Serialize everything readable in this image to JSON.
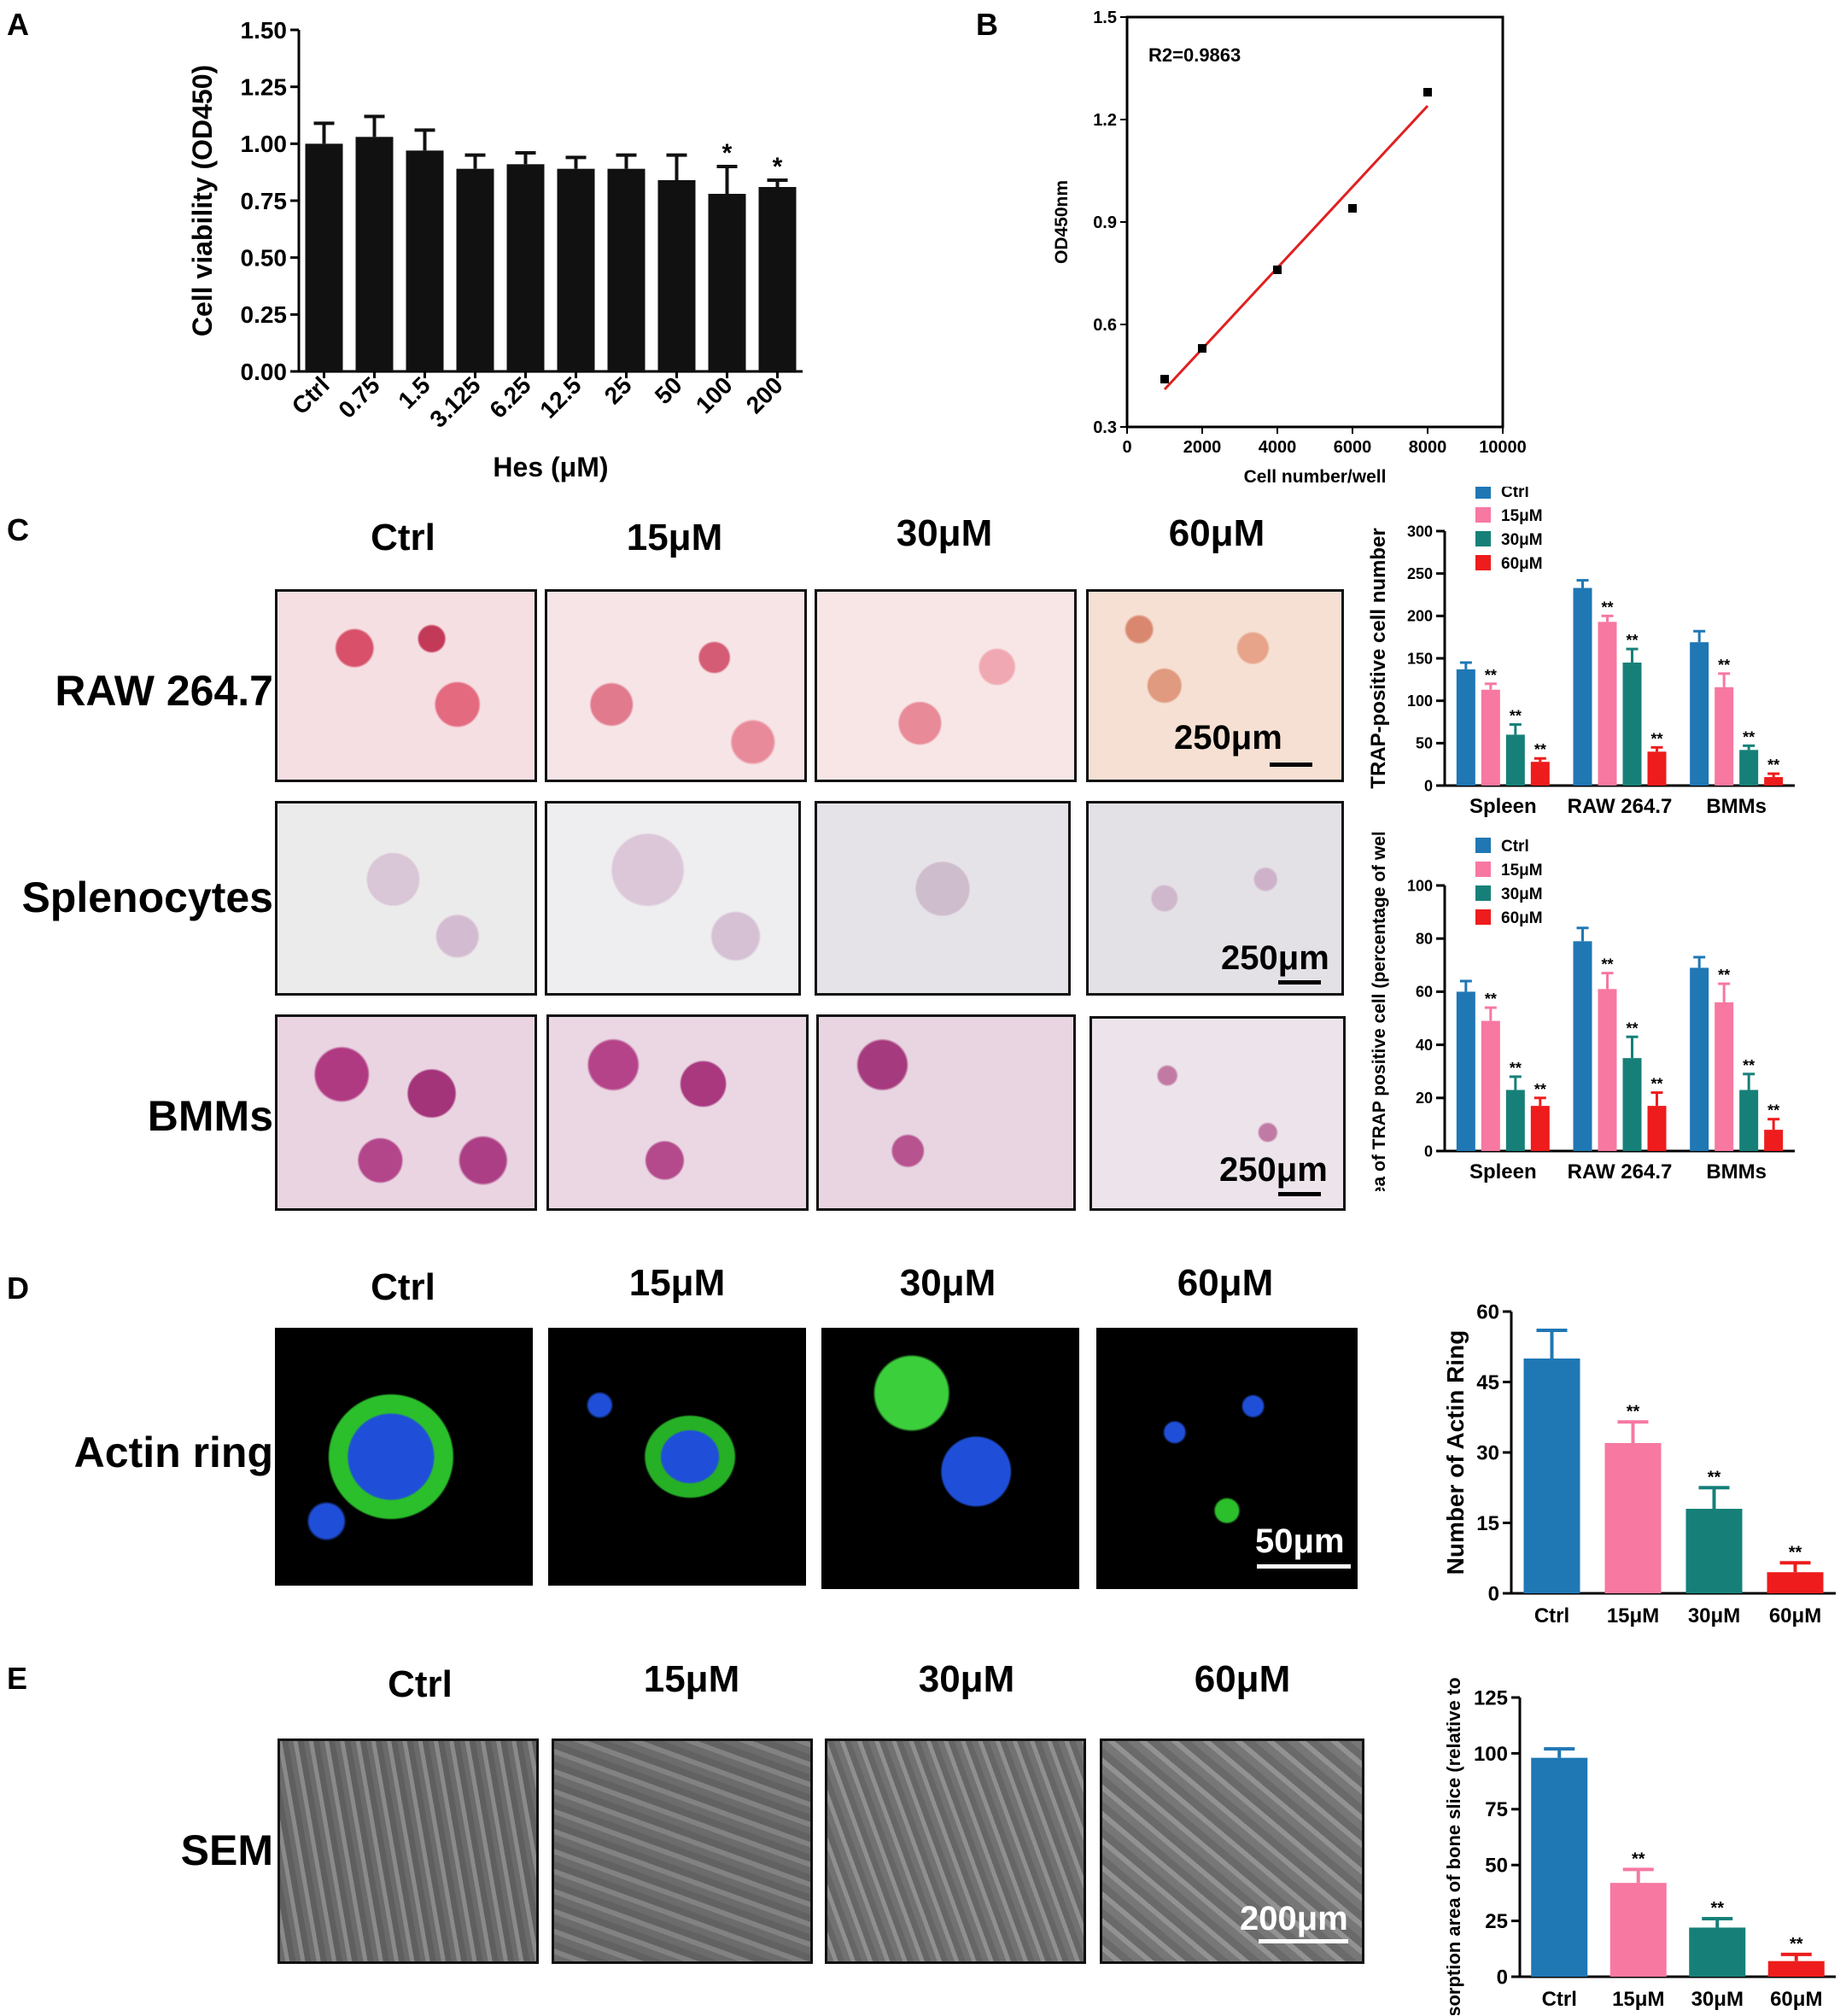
{
  "panel_labels": {
    "a": "A",
    "b": "B",
    "c": "C",
    "d": "D",
    "e": "E"
  },
  "conditions": [
    "Ctrl",
    "15μM",
    "30μM",
    "60μM"
  ],
  "row_labels": {
    "raw": "RAW 264.7",
    "spleno": "Splenocytes",
    "bmm": "BMMs",
    "actin": "Actin ring",
    "sem": "SEM"
  },
  "scale_bars": {
    "c": "250μm",
    "d": "50μm",
    "e": "200μm"
  },
  "colors": {
    "blue": "#1f77b4",
    "pink": "#f778a1",
    "teal": "#168078",
    "red": "#ee1c1c",
    "dark": "#111111",
    "fit": "#e02020"
  },
  "chart_data": [
    {
      "id": "A",
      "type": "bar",
      "title": "",
      "xlabel": "Hes (μM)",
      "ylabel": "Cell viability (OD450)",
      "ylim": [
        0,
        1.5
      ],
      "yticks": [
        "0.00",
        "0.25",
        "0.50",
        "0.75",
        "1.00",
        "1.25",
        "1.50"
      ],
      "categories": [
        "Ctrl",
        "0.75",
        "1.5",
        "3.125",
        "6.25",
        "12.5",
        "25",
        "50",
        "100",
        "200"
      ],
      "values": [
        1.0,
        1.03,
        0.97,
        0.89,
        0.91,
        0.89,
        0.89,
        0.84,
        0.78,
        0.81
      ],
      "errors": [
        0.09,
        0.09,
        0.09,
        0.06,
        0.05,
        0.05,
        0.06,
        0.11,
        0.12,
        0.03
      ],
      "sig": [
        "",
        "",
        "",
        "",
        "",
        "",
        "",
        "",
        "*",
        "*"
      ]
    },
    {
      "id": "B",
      "type": "scatter",
      "title": "",
      "annotation": "R2=0.9863",
      "xlabel": "Cell number/well",
      "ylabel": "OD450nm",
      "xlim": [
        0,
        10000
      ],
      "ylim": [
        0.3,
        1.5
      ],
      "xticks": [
        "0",
        "2000",
        "4000",
        "6000",
        "8000",
        "10000"
      ],
      "yticks": [
        "0.3",
        "0.6",
        "0.9",
        "1.2",
        "1.5"
      ],
      "points": [
        [
          1000,
          0.44
        ],
        [
          2000,
          0.53
        ],
        [
          4000,
          0.76
        ],
        [
          6000,
          0.94
        ],
        [
          8000,
          1.28
        ]
      ],
      "fit": [
        [
          1000,
          0.41
        ],
        [
          8000,
          1.24
        ]
      ]
    },
    {
      "id": "C-top",
      "type": "bar",
      "ylabel": "TRAP-positive cell number",
      "ylim": [
        0,
        300
      ],
      "yticks": [
        "0",
        "50",
        "100",
        "150",
        "200",
        "250",
        "300"
      ],
      "categories": [
        "Spleen",
        "RAW 264.7",
        "BMMs"
      ],
      "series": [
        {
          "name": "Ctrl",
          "values": [
            137,
            233,
            169
          ],
          "errors": [
            8,
            9,
            13
          ],
          "sig": [
            "",
            "",
            ""
          ]
        },
        {
          "name": "15μM",
          "values": [
            113,
            193,
            116
          ],
          "errors": [
            7,
            7,
            16
          ],
          "sig": [
            "**",
            "**",
            "**"
          ]
        },
        {
          "name": "30μM",
          "values": [
            60,
            145,
            42
          ],
          "errors": [
            12,
            16,
            5
          ],
          "sig": [
            "**",
            "**",
            "**"
          ]
        },
        {
          "name": "60μM",
          "values": [
            28,
            40,
            10
          ],
          "errors": [
            4,
            5,
            4
          ],
          "sig": [
            "**",
            "**",
            "**"
          ]
        }
      ]
    },
    {
      "id": "C-bottom",
      "type": "bar",
      "ylabel": "Area of TRAP positive cell (percentage of well)",
      "ylim": [
        0,
        100
      ],
      "yticks": [
        "0",
        "20",
        "40",
        "60",
        "80",
        "100"
      ],
      "categories": [
        "Spleen",
        "RAW 264.7",
        "BMMs"
      ],
      "series": [
        {
          "name": "Ctrl",
          "values": [
            60,
            79,
            69
          ],
          "errors": [
            4,
            5,
            4
          ],
          "sig": [
            "",
            "",
            ""
          ]
        },
        {
          "name": "15μM",
          "values": [
            49,
            61,
            56
          ],
          "errors": [
            5,
            6,
            7
          ],
          "sig": [
            "**",
            "**",
            "**"
          ]
        },
        {
          "name": "30μM",
          "values": [
            23,
            35,
            23
          ],
          "errors": [
            5,
            8,
            6
          ],
          "sig": [
            "**",
            "**",
            "**"
          ]
        },
        {
          "name": "60μM",
          "values": [
            17,
            17,
            8
          ],
          "errors": [
            3,
            5,
            4
          ],
          "sig": [
            "**",
            "**",
            "**"
          ]
        }
      ]
    },
    {
      "id": "D",
      "type": "bar",
      "ylabel": "Number of Actin Ring",
      "ylim": [
        0,
        60
      ],
      "yticks": [
        "0",
        "15",
        "30",
        "45",
        "60"
      ],
      "categories": [
        "Ctrl",
        "15μM",
        "30μM",
        "60μM"
      ],
      "values": [
        50,
        32,
        18,
        4.5
      ],
      "errors": [
        6,
        4.5,
        4.5,
        2
      ],
      "sig": [
        "",
        "**",
        "**",
        "**"
      ]
    },
    {
      "id": "E",
      "type": "bar",
      "ylabel": "Resorption area of bone slice (relative to Ctrl)",
      "ylim": [
        0,
        125
      ],
      "yticks": [
        "0",
        "25",
        "50",
        "75",
        "100",
        "125"
      ],
      "categories": [
        "Ctrl",
        "15μM",
        "30μM",
        "60μM"
      ],
      "values": [
        98,
        42,
        22,
        7
      ],
      "errors": [
        4,
        6,
        4,
        3
      ],
      "sig": [
        "",
        "**",
        "**",
        "**"
      ]
    }
  ]
}
